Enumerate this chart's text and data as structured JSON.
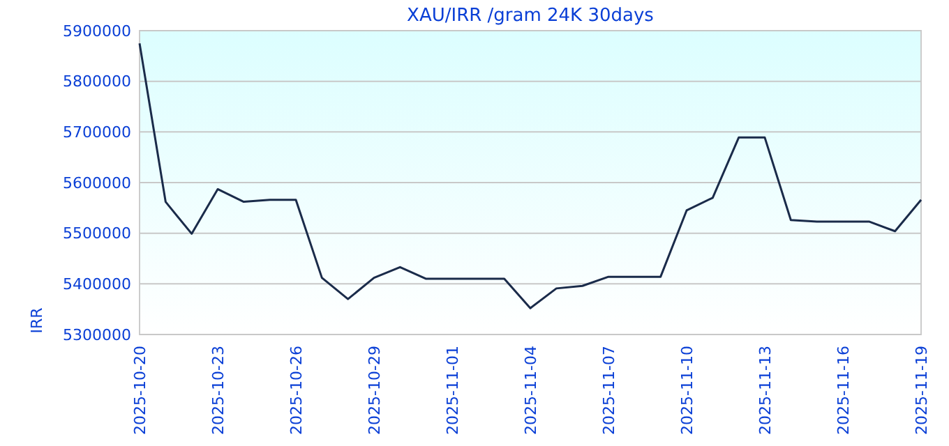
{
  "chart_data": {
    "type": "line",
    "title": "XAU/IRR /gram 24K 30days",
    "ylabel": "IRR",
    "x": [
      "2025-10-20",
      "2025-10-21",
      "2025-10-22",
      "2025-10-23",
      "2025-10-24",
      "2025-10-25",
      "2025-10-26",
      "2025-10-27",
      "2025-10-28",
      "2025-10-29",
      "2025-10-30",
      "2025-10-31",
      "2025-11-01",
      "2025-11-02",
      "2025-11-03",
      "2025-11-04",
      "2025-11-05",
      "2025-11-06",
      "2025-11-07",
      "2025-11-08",
      "2025-11-09",
      "2025-11-10",
      "2025-11-11",
      "2025-11-12",
      "2025-11-13",
      "2025-11-14",
      "2025-11-15",
      "2025-11-16",
      "2025-11-17",
      "2025-11-18",
      "2025-11-19"
    ],
    "series": [
      {
        "color": "#1a2b4a",
        "values": [
          5875000,
          5562000,
          5499000,
          5587000,
          5562000,
          5566000,
          5566000,
          5412000,
          5370000,
          5412000,
          5433000,
          5410000,
          5410000,
          5410000,
          5410000,
          5352000,
          5391000,
          5396000,
          5414000,
          5414000,
          5414000,
          5545000,
          5570000,
          5689000,
          5689000,
          5526000,
          5523000,
          5523000,
          5523000,
          5504000,
          5566000
        ]
      }
    ],
    "xlim": [
      "2025-10-20",
      "2025-11-19"
    ],
    "xticks": [
      "2025-10-20",
      "2025-10-23",
      "2025-10-26",
      "2025-10-29",
      "2025-11-01",
      "2025-11-04",
      "2025-11-07",
      "2025-11-10",
      "2025-11-13",
      "2025-11-16",
      "2025-11-19"
    ],
    "ylim": [
      5300000,
      5900000
    ],
    "yticks": [
      5300000,
      5400000,
      5500000,
      5600000,
      5700000,
      5800000,
      5900000
    ],
    "grid": "y",
    "marker": "none",
    "line_style": "solid"
  }
}
